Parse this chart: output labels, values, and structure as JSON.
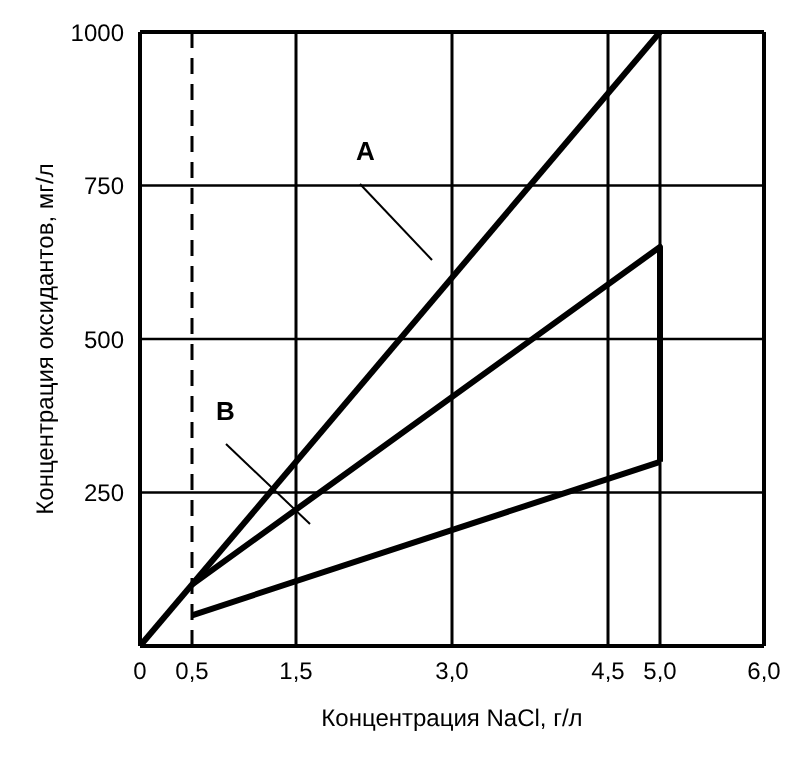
{
  "chart_data": {
    "type": "line",
    "xlabel": "Концентрация NaCl, г/л",
    "ylabel": "Концентрация оксидантов, мг/л",
    "series": [
      {
        "x": [
          0,
          5
        ],
        "values": [
          0,
          1000
        ],
        "color": "#000000"
      },
      {
        "x": [
          0.5,
          5,
          5
        ],
        "values": [
          100,
          650,
          300
        ],
        "color": "#000000"
      },
      {
        "x": [
          0.5,
          5
        ],
        "values": [
          50,
          300
        ],
        "color": "#000000"
      }
    ],
    "xlim": [
      0,
      6
    ],
    "ylim": [
      0,
      1000
    ],
    "xticks": [
      0,
      {
        "value": 0.5,
        "label": "0,5"
      },
      {
        "value": 1.5,
        "label": "1,5"
      },
      {
        "value": 3,
        "label": "3,0"
      },
      {
        "value": 4.5,
        "label": "4,5"
      },
      {
        "value": 5,
        "label": "5,0"
      },
      {
        "value": 6,
        "label": "6,0"
      }
    ],
    "yticks": [
      {
        "value": 0,
        "label": null
      },
      250,
      500,
      750,
      1000
    ],
    "grid": true,
    "marker": "none",
    "line_style": "solid",
    "ref_lines": [
      {
        "axis": "x",
        "value": 0.5,
        "color": "#000000",
        "line_style": "dashed"
      }
    ],
    "annotations": [
      "A",
      "B"
    ]
  }
}
